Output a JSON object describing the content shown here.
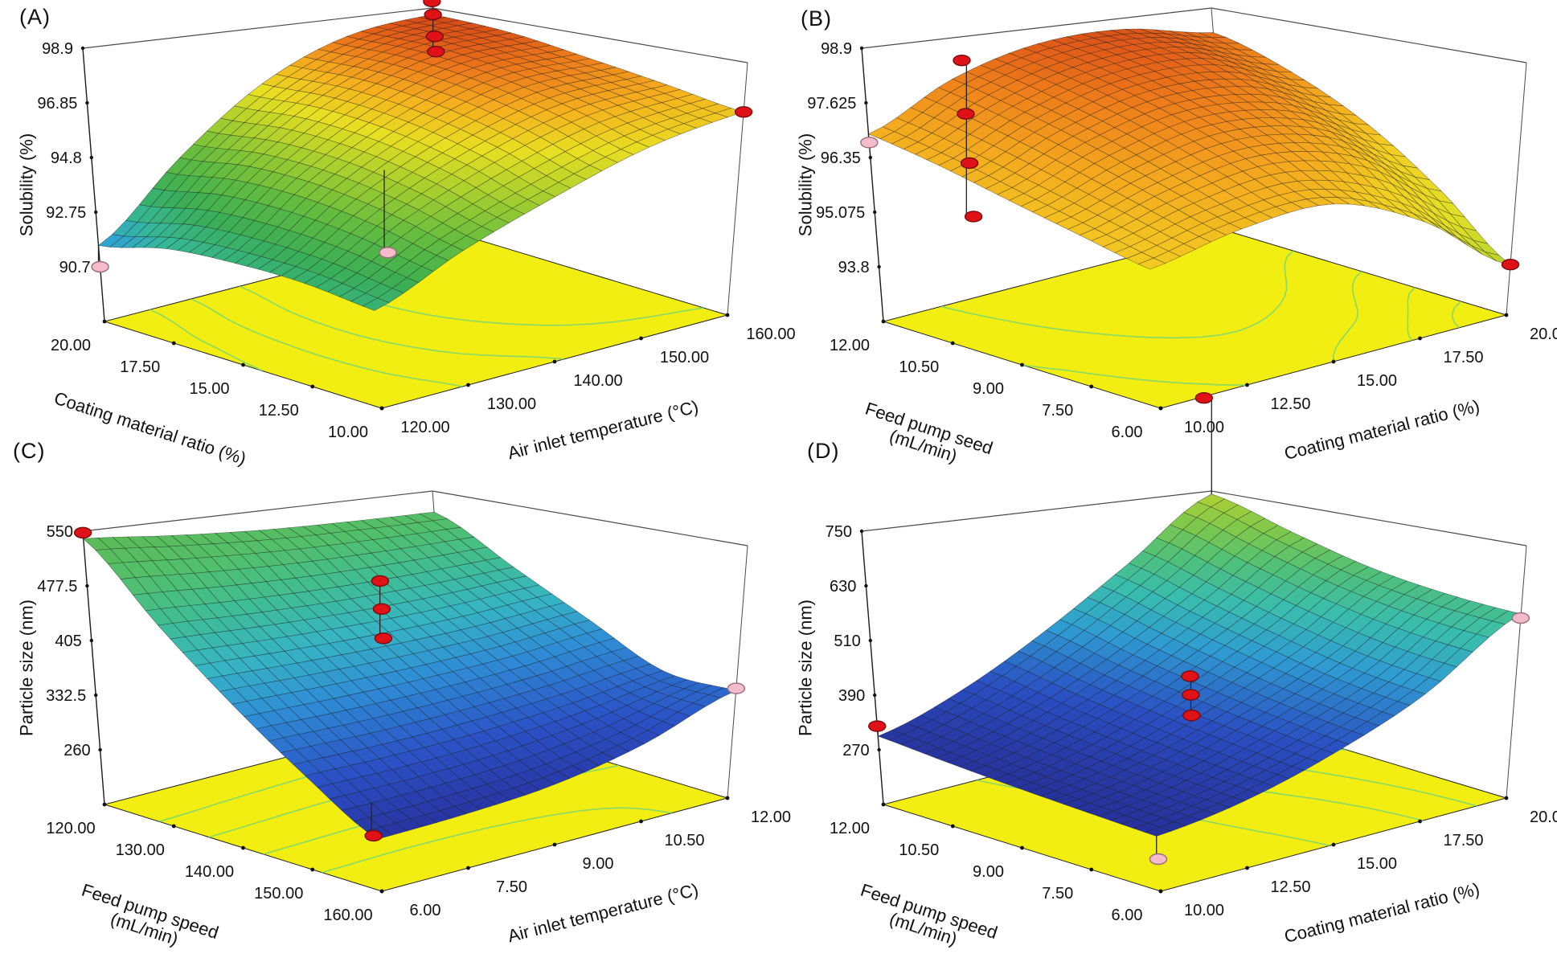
{
  "style": {
    "background": "#ffffff",
    "floor_color": "#f2ee12",
    "contour_color": "#86da67",
    "box_line_color": "#4a4a4a",
    "axis_line_color": "#1a1a1a",
    "mesh_line_color": "#1a1a1a",
    "text_color": "#111111",
    "marker_red": "#e01218",
    "marker_red_stroke": "#7a0a0c",
    "marker_pink": "#f4bccb",
    "marker_pink_stroke": "#9c6b7a"
  },
  "chart_data": [
    {
      "type": "surface3d",
      "label": "(A)",
      "z_axis": {
        "title_lines": [
          "Solubility (%)"
        ],
        "ticks": [
          "98.9",
          "96.85",
          "94.8",
          "92.75",
          "90.7"
        ],
        "lim": [
          90.7,
          98.9
        ]
      },
      "axis1": {
        "title_lines": [
          "Coating material ratio (%)"
        ],
        "ticks": [
          "20.00",
          "17.50",
          "15.00",
          "12.50",
          "10.00"
        ],
        "range": [
          20,
          10
        ]
      },
      "axis2": {
        "title_lines": [
          "Air inlet temperature (°C)"
        ],
        "ticks": [
          "120.00",
          "130.00",
          "140.00",
          "150.00",
          "160.00"
        ],
        "range": [
          120,
          160
        ]
      },
      "grid": [
        [
          91.5,
          94.2,
          96.6,
          98.1,
          98.6
        ],
        [
          92.3,
          94.8,
          96.9,
          98.2,
          98.4
        ],
        [
          92.7,
          95.0,
          96.8,
          97.9,
          97.9
        ],
        [
          92.9,
          94.8,
          96.3,
          97.3,
          97.4
        ],
        [
          92.8,
          94.3,
          95.5,
          96.5,
          96.9
        ]
      ],
      "markers": [
        {
          "a1": 20,
          "a2": 120,
          "color": "pink",
          "z": [
            90.7
          ]
        },
        {
          "a1": 14,
          "a2": 134,
          "color": "pink",
          "z": [
            92.3
          ]
        },
        {
          "a1": 10,
          "a2": 160,
          "color": "red",
          "z": [
            96.9
          ]
        },
        {
          "a1": 20,
          "a2": 160,
          "color": "red",
          "z": [
            99.2,
            98.6,
            97.6,
            96.9
          ]
        }
      ],
      "colormap": [
        [
          0,
          "#2f6bd8"
        ],
        [
          0.1,
          "#2f9ee0"
        ],
        [
          0.2,
          "#35b89a"
        ],
        [
          0.32,
          "#3aae55"
        ],
        [
          0.45,
          "#62bc3f"
        ],
        [
          0.58,
          "#a6cf2e"
        ],
        [
          0.7,
          "#e8df22"
        ],
        [
          0.8,
          "#f5b31e"
        ],
        [
          0.89,
          "#ed7a1a"
        ],
        [
          0.96,
          "#d94a16"
        ],
        [
          1,
          "#8f2c0e"
        ]
      ]
    },
    {
      "type": "surface3d",
      "label": "(B)",
      "z_axis": {
        "title_lines": [
          "Solubility (%)"
        ],
        "ticks": [
          "98.9",
          "97.625",
          "96.35",
          "95.075",
          "93.8"
        ],
        "lim": [
          93.8,
          98.9
        ]
      },
      "axis1": {
        "title_lines": [
          "Feed pump seed",
          "(mL/min)"
        ],
        "ticks": [
          "12.00",
          "10.50",
          "9.00",
          "7.50",
          "6.00"
        ],
        "range": [
          12,
          6
        ]
      },
      "axis2": {
        "title_lines": [
          "Coating material ratio (%)"
        ],
        "ticks": [
          "10.00",
          "12.50",
          "15.00",
          "17.50",
          "20.00"
        ],
        "range": [
          10,
          20
        ]
      },
      "grid": [
        [
          96.9,
          97.9,
          98.5,
          98.6,
          98.2
        ],
        [
          96.8,
          97.7,
          98.3,
          98.3,
          97.5
        ],
        [
          96.6,
          97.4,
          97.9,
          97.6,
          96.5
        ],
        [
          96.4,
          97.0,
          97.3,
          96.7,
          95.2
        ],
        [
          96.2,
          96.6,
          96.6,
          95.5,
          93.8
        ]
      ],
      "markers": [
        {
          "a1": 12,
          "a2": 10,
          "color": "pink",
          "z": [
            96.7
          ]
        },
        {
          "a1": 6,
          "a2": 20,
          "color": "red",
          "z": [
            93.8
          ]
        },
        {
          "a1": 11,
          "a2": 11.5,
          "color": "red",
          "z": [
            98.9,
            97.6,
            96.4,
            95.1
          ]
        }
      ],
      "colormap": [
        [
          0,
          "#b9d32c"
        ],
        [
          0.2,
          "#e2e026"
        ],
        [
          0.45,
          "#f2cf22"
        ],
        [
          0.65,
          "#f4a81e"
        ],
        [
          0.82,
          "#ee7d1a"
        ],
        [
          0.93,
          "#e05a18"
        ],
        [
          1,
          "#b53812"
        ]
      ]
    },
    {
      "type": "surface3d",
      "label": "(C)",
      "z_axis": {
        "title_lines": [
          "Particle size (nm)"
        ],
        "ticks": [
          "550",
          "477.5",
          "405",
          "332.5",
          "260"
        ],
        "lim": [
          260,
          550
        ]
      },
      "axis1": {
        "title_lines": [
          "Feed pump speed",
          "(mL/min)"
        ],
        "ticks": [
          "120.00",
          "130.00",
          "140.00",
          "150.00",
          "160.00"
        ],
        "range": [
          120,
          160
        ]
      },
      "axis2": {
        "title_lines": [
          "Air inlet temperature (°C)"
        ],
        "ticks": [
          "6.00",
          "7.50",
          "9.00",
          "10.50",
          "12.00"
        ],
        "range": [
          6,
          12
        ]
      },
      "grid": [
        [
          540,
          530,
          522,
          518,
          516
        ],
        [
          462,
          455,
          450,
          449,
          452
        ],
        [
          390,
          386,
          384,
          386,
          395
        ],
        [
          324,
          321,
          323,
          331,
          345
        ],
        [
          266,
          268,
          276,
          300,
          342
        ]
      ],
      "markers": [
        {
          "a1": 120,
          "a2": 6,
          "color": "red",
          "z": [
            548
          ]
        },
        {
          "a1": 160,
          "a2": 12,
          "color": "pink",
          "z": [
            345
          ]
        },
        {
          "a1": 155,
          "a2": 6.5,
          "color": "red",
          "z": [
            242
          ]
        },
        {
          "a1": 128,
          "a2": 10,
          "color": "red",
          "z": [
            458,
            416,
            372
          ]
        }
      ],
      "colormap": [
        [
          0,
          "#28309e"
        ],
        [
          0.2,
          "#2a52c6"
        ],
        [
          0.4,
          "#2f8ed6"
        ],
        [
          0.55,
          "#36b4c4"
        ],
        [
          0.7,
          "#3fbd94"
        ],
        [
          0.85,
          "#52c06a"
        ],
        [
          1,
          "#5fb84f"
        ]
      ]
    },
    {
      "type": "surface3d",
      "label": "(D)",
      "z_axis": {
        "title_lines": [
          "Particle size (nm)"
        ],
        "ticks": [
          "750",
          "630",
          "510",
          "390",
          "270"
        ],
        "lim": [
          270,
          750
        ]
      },
      "axis1": {
        "title_lines": [
          "Feed pump speed",
          "(mL/min)"
        ],
        "ticks": [
          "12.00",
          "10.50",
          "9.00",
          "7.50",
          "6.00"
        ],
        "range": [
          12,
          6
        ]
      },
      "axis2": {
        "title_lines": [
          "Coating material ratio (%)"
        ],
        "ticks": [
          "10.00",
          "12.50",
          "15.00",
          "17.50",
          "20.00"
        ],
        "range": [
          10,
          20
        ]
      },
      "grid": [
        [
          300,
          362,
          462,
          592,
          742
        ],
        [
          294,
          344,
          430,
          546,
          680
        ],
        [
          290,
          330,
          405,
          505,
          628
        ],
        [
          288,
          320,
          386,
          472,
          600
        ],
        [
          287,
          315,
          372,
          456,
          588
        ]
      ],
      "markers": [
        {
          "a1": 12,
          "a2": 10,
          "color": "red",
          "z": [
            322
          ]
        },
        {
          "a1": 6,
          "a2": 20,
          "color": "pink",
          "z": [
            578
          ]
        },
        {
          "a1": 6,
          "a2": 10,
          "color": "pink",
          "z": [
            230
          ]
        },
        {
          "a1": 9,
          "a2": 15,
          "color": "red",
          "z": [
            455,
            410,
            360
          ]
        },
        {
          "a1": 12,
          "a2": 20,
          "color": "red",
          "z": [
            1000
          ]
        }
      ],
      "colormap": [
        [
          0,
          "#262c94"
        ],
        [
          0.22,
          "#2a4fc2"
        ],
        [
          0.42,
          "#2f9cd2"
        ],
        [
          0.58,
          "#39bdae"
        ],
        [
          0.72,
          "#4fc07a"
        ],
        [
          0.85,
          "#7cc84c"
        ],
        [
          1,
          "#b7d231"
        ]
      ]
    }
  ]
}
